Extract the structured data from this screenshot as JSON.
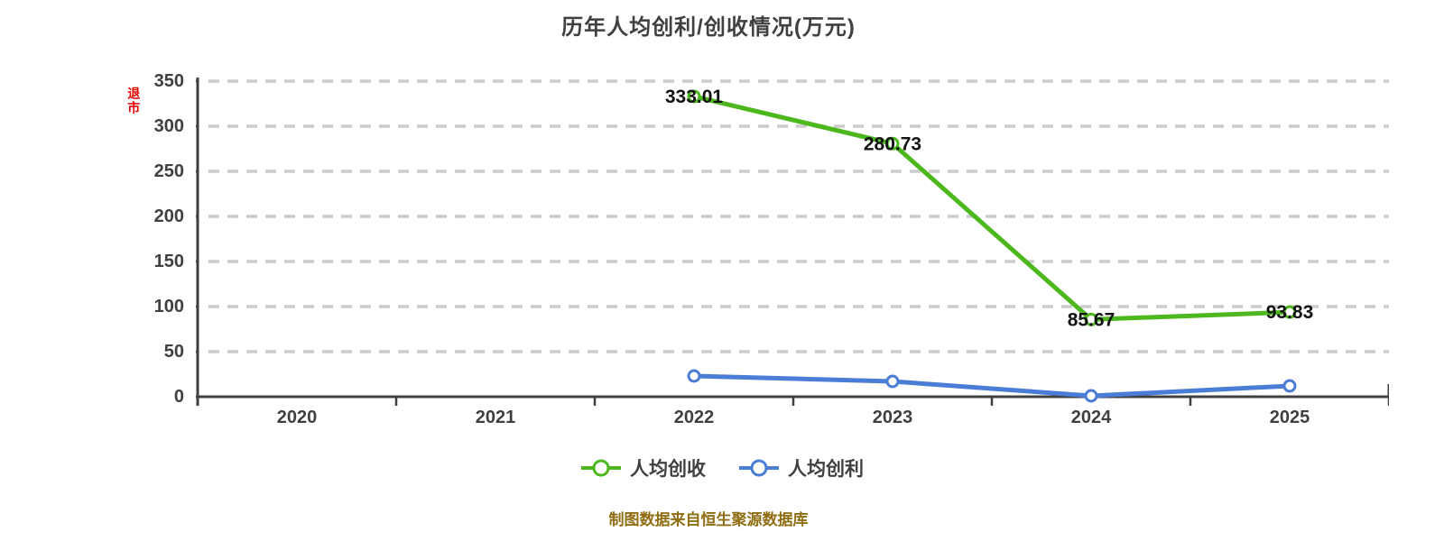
{
  "page": {
    "background": "#ffffff"
  },
  "watermark": {
    "text": "退市",
    "color": "#e60000"
  },
  "footer": {
    "text": "制图数据来自恒生聚源数据库",
    "color": "#8f6d12"
  },
  "chart_data": {
    "type": "line",
    "title": "历年人均创利/创收情况(万元)",
    "categories": [
      "2020",
      "2021",
      "2022",
      "2023",
      "2024",
      "2025"
    ],
    "series": [
      {
        "name": "人均创收",
        "color": "#4cb81e",
        "x": [
          "2022",
          "2023",
          "2024",
          "2025"
        ],
        "values": [
          333.01,
          280.73,
          85.67,
          93.83
        ],
        "labels": [
          "333.01",
          "280.73",
          "85.67",
          "93.83"
        ]
      },
      {
        "name": "人均创利",
        "color": "#4a7ed6",
        "x": [
          "2022",
          "2023",
          "2024",
          "2025"
        ],
        "values": [
          23,
          17,
          1,
          12
        ],
        "labels": []
      }
    ],
    "y_axis": {
      "min": 0,
      "max": 350,
      "ticks": [
        0,
        50,
        100,
        150,
        200,
        250,
        300,
        350
      ]
    },
    "grid": "horizontal-dashed",
    "legend_position": "bottom",
    "colors": {
      "grid": "#cccccc",
      "axis": "#404040",
      "point_label": "#121212",
      "marker_fill": "#ffffff"
    }
  }
}
